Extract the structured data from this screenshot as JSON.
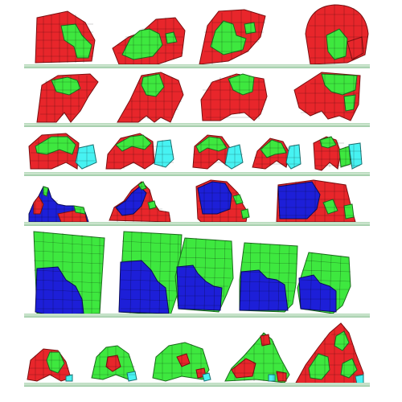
{
  "figure": {
    "colors": {
      "red": "#e8262b",
      "green": "#3ee83f",
      "blue": "#1d1fd8",
      "cyan": "#47f2f2",
      "ground": "#a8d3ae",
      "background": "#ffffff"
    },
    "rows": [
      {
        "id": "row-1",
        "creatures": [
          {
            "shape": "blob-round-right",
            "palette": [
              "red",
              "green"
            ]
          },
          {
            "shape": "blob-lean-right",
            "palette": [
              "red",
              "green"
            ]
          },
          {
            "shape": "blob-tall-left",
            "palette": [
              "red",
              "green"
            ]
          },
          {
            "shape": "blob-dome",
            "palette": [
              "red",
              "green"
            ]
          }
        ]
      },
      {
        "id": "row-2",
        "creatures": [
          {
            "shape": "arch-wide",
            "palette": [
              "red",
              "green"
            ]
          },
          {
            "shape": "arch-leaning",
            "palette": [
              "red",
              "green"
            ]
          },
          {
            "shape": "arch-walker",
            "palette": [
              "red",
              "green"
            ]
          },
          {
            "shape": "arch-box",
            "palette": [
              "red",
              "green"
            ]
          }
        ]
      },
      {
        "id": "row-3",
        "creatures": [
          {
            "shape": "hopper",
            "palette": [
              "red",
              "green",
              "cyan"
            ]
          },
          {
            "shape": "hopper",
            "palette": [
              "red",
              "green",
              "cyan"
            ]
          },
          {
            "shape": "hopper",
            "palette": [
              "red",
              "green",
              "cyan"
            ]
          },
          {
            "shape": "hopper-small",
            "palette": [
              "red",
              "green",
              "cyan"
            ]
          },
          {
            "shape": "hopper-small",
            "palette": [
              "red",
              "green",
              "cyan"
            ]
          }
        ]
      },
      {
        "id": "row-4",
        "creatures": [
          {
            "shape": "stair",
            "palette": [
              "blue",
              "red",
              "green"
            ]
          },
          {
            "shape": "stair-tall",
            "palette": [
              "blue",
              "red",
              "green"
            ]
          },
          {
            "shape": "stair-block",
            "palette": [
              "blue",
              "red",
              "green"
            ]
          },
          {
            "shape": "block-wide",
            "palette": [
              "blue",
              "red",
              "green"
            ]
          }
        ]
      },
      {
        "id": "row-5",
        "creatures": [
          {
            "shape": "tower",
            "palette": [
              "green",
              "blue"
            ]
          },
          {
            "shape": "tower",
            "palette": [
              "green",
              "blue"
            ]
          },
          {
            "shape": "tower-narrow",
            "palette": [
              "green",
              "blue"
            ]
          },
          {
            "shape": "tower-narrow",
            "palette": [
              "green",
              "blue"
            ]
          },
          {
            "shape": "tower-narrow",
            "palette": [
              "green",
              "blue"
            ]
          }
        ]
      },
      {
        "id": "row-6",
        "creatures": [
          {
            "shape": "crawler",
            "palette": [
              "red",
              "green",
              "cyan"
            ]
          },
          {
            "shape": "crawler",
            "palette": [
              "green",
              "red",
              "cyan"
            ]
          },
          {
            "shape": "crawler-wide",
            "palette": [
              "green",
              "red",
              "cyan"
            ]
          },
          {
            "shape": "crawler-hump",
            "palette": [
              "green",
              "red",
              "cyan"
            ]
          },
          {
            "shape": "crawler-peak",
            "palette": [
              "red",
              "green",
              "cyan"
            ]
          }
        ]
      }
    ]
  }
}
